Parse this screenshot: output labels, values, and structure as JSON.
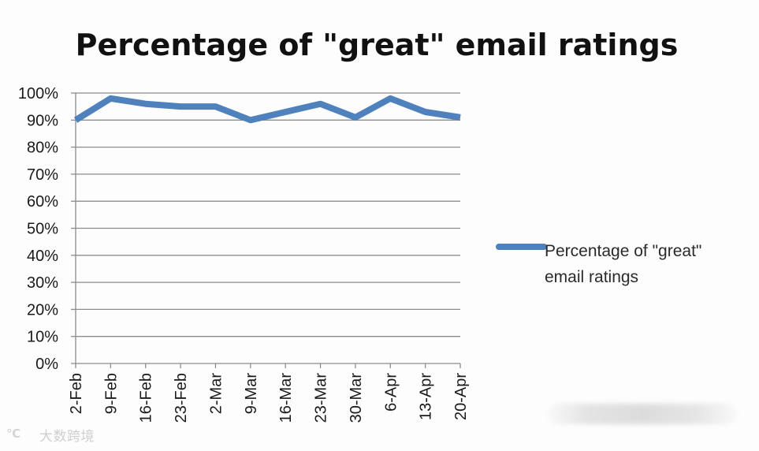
{
  "chart_data": {
    "type": "line",
    "title": "Percentage of \"great\" email ratings",
    "categories": [
      "2-Feb",
      "9-Feb",
      "16-Feb",
      "23-Feb",
      "2-Mar",
      "9-Mar",
      "16-Mar",
      "23-Mar",
      "30-Mar",
      "6-Apr",
      "13-Apr",
      "20-Apr"
    ],
    "series": [
      {
        "name": "Percentage of \"great\" email ratings",
        "values": [
          0.9,
          0.98,
          0.96,
          0.95,
          0.95,
          0.9,
          0.93,
          0.96,
          0.91,
          0.98,
          0.93,
          0.91
        ],
        "color": "#4f81bd"
      }
    ],
    "y_ticks": [
      "0%",
      "10%",
      "20%",
      "30%",
      "40%",
      "50%",
      "60%",
      "70%",
      "80%",
      "90%",
      "100%"
    ],
    "ylim": [
      0,
      1
    ],
    "grid": true,
    "legend_position": "right",
    "legend_lines": [
      "Percentage of \"great\"",
      "email ratings"
    ]
  },
  "watermark": {
    "logo": "℃",
    "text": "大数跨境"
  }
}
